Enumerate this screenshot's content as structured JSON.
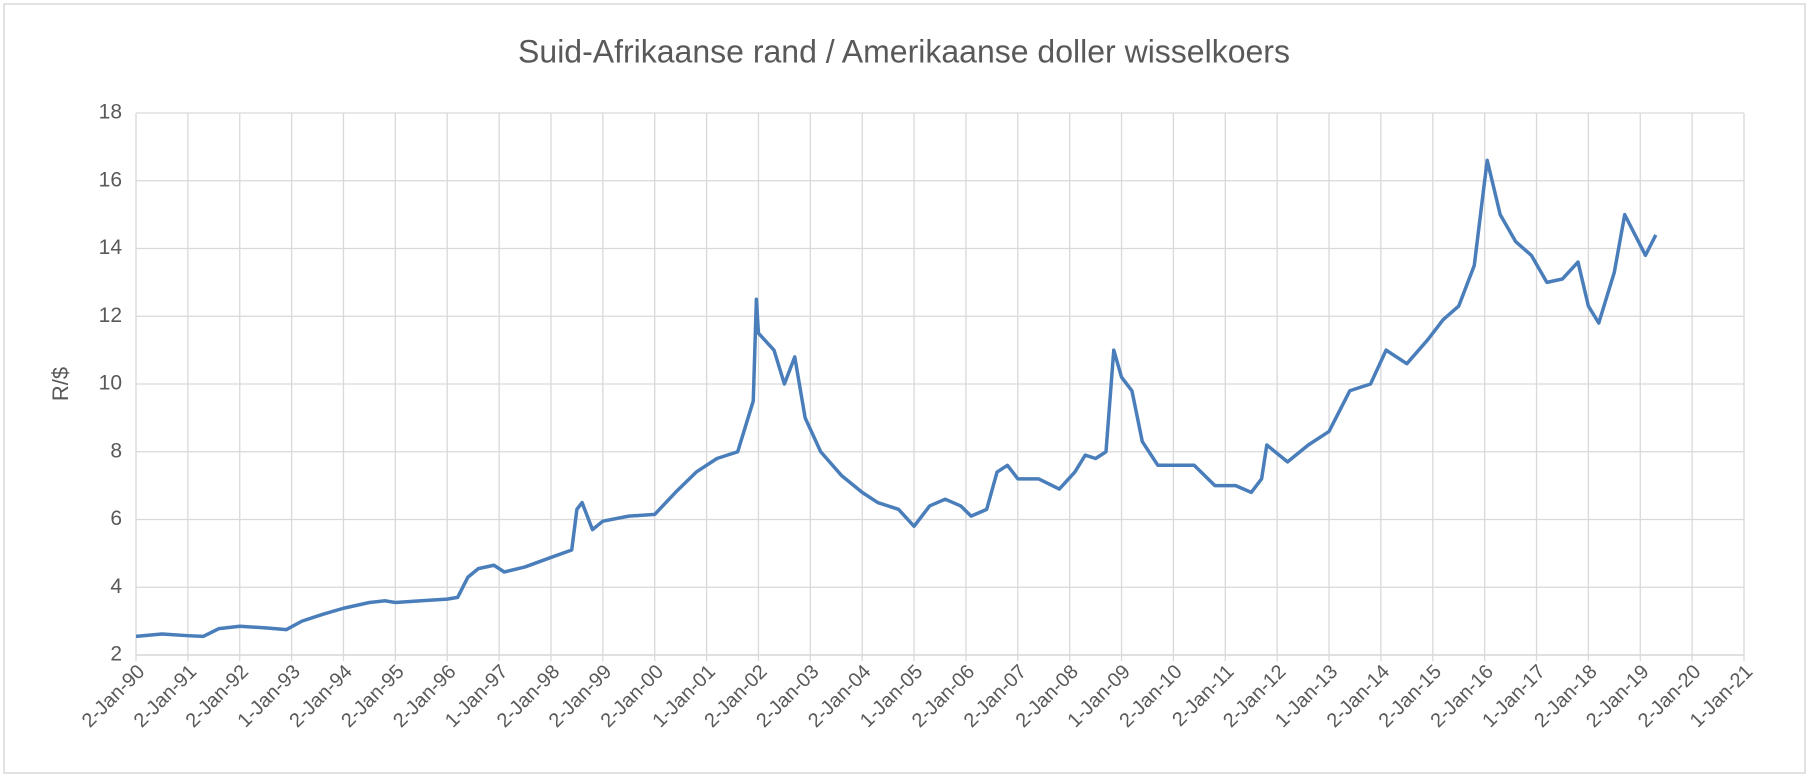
{
  "chart_data": {
    "type": "line",
    "title": "Suid-Afrikaanse rand / Amerikaanse doller wisselkoers",
    "y_label": "R/$",
    "grid": true,
    "xlim": [
      1990,
      2021
    ],
    "xticks": [
      {
        "value": 1990,
        "label": "2-Jan-90"
      },
      {
        "value": 1991,
        "label": "2-Jan-91"
      },
      {
        "value": 1992,
        "label": "2-Jan-92"
      },
      {
        "value": 1993,
        "label": "1-Jan-93"
      },
      {
        "value": 1994,
        "label": "2-Jan-94"
      },
      {
        "value": 1995,
        "label": "2-Jan-95"
      },
      {
        "value": 1996,
        "label": "2-Jan-96"
      },
      {
        "value": 1997,
        "label": "1-Jan-97"
      },
      {
        "value": 1998,
        "label": "2-Jan-98"
      },
      {
        "value": 1999,
        "label": "2-Jan-99"
      },
      {
        "value": 2000,
        "label": "2-Jan-00"
      },
      {
        "value": 2001,
        "label": "1-Jan-01"
      },
      {
        "value": 2002,
        "label": "2-Jan-02"
      },
      {
        "value": 2003,
        "label": "2-Jan-03"
      },
      {
        "value": 2004,
        "label": "2-Jan-04"
      },
      {
        "value": 2005,
        "label": "1-Jan-05"
      },
      {
        "value": 2006,
        "label": "2-Jan-06"
      },
      {
        "value": 2007,
        "label": "2-Jan-07"
      },
      {
        "value": 2008,
        "label": "2-Jan-08"
      },
      {
        "value": 2009,
        "label": "1-Jan-09"
      },
      {
        "value": 2010,
        "label": "2-Jan-10"
      },
      {
        "value": 2011,
        "label": "2-Jan-11"
      },
      {
        "value": 2012,
        "label": "2-Jan-12"
      },
      {
        "value": 2013,
        "label": "1-Jan-13"
      },
      {
        "value": 2014,
        "label": "2-Jan-14"
      },
      {
        "value": 2015,
        "label": "2-Jan-15"
      },
      {
        "value": 2016,
        "label": "2-Jan-16"
      },
      {
        "value": 2017,
        "label": "1-Jan-17"
      },
      {
        "value": 2018,
        "label": "2-Jan-18"
      },
      {
        "value": 2019,
        "label": "2-Jan-19"
      },
      {
        "value": 2020,
        "label": "2-Jan-20"
      },
      {
        "value": 2021,
        "label": "1-Jan-21"
      }
    ],
    "ylim": [
      2,
      18
    ],
    "yticks": [
      2,
      4,
      6,
      8,
      10,
      12,
      14,
      16,
      18
    ],
    "x": [
      1990.0,
      1990.5,
      1991.0,
      1991.3,
      1991.6,
      1992.0,
      1992.5,
      1992.9,
      1993.2,
      1993.6,
      1994.0,
      1994.5,
      1994.8,
      1995.0,
      1995.5,
      1996.0,
      1996.2,
      1996.4,
      1996.6,
      1996.9,
      1997.1,
      1997.5,
      1998.0,
      1998.4,
      1998.5,
      1998.6,
      1998.8,
      1999.0,
      1999.5,
      2000.0,
      2000.4,
      2000.8,
      2001.2,
      2001.6,
      2001.9,
      2001.96,
      2002.0,
      2002.3,
      2002.5,
      2002.7,
      2002.9,
      2003.2,
      2003.6,
      2004.0,
      2004.3,
      2004.7,
      2005.0,
      2005.3,
      2005.6,
      2005.9,
      2006.1,
      2006.4,
      2006.6,
      2006.8,
      2007.0,
      2007.4,
      2007.8,
      2008.1,
      2008.3,
      2008.5,
      2008.7,
      2008.85,
      2009.0,
      2009.2,
      2009.4,
      2009.7,
      2010.0,
      2010.4,
      2010.8,
      2011.2,
      2011.5,
      2011.7,
      2011.8,
      2012.2,
      2012.6,
      2013.0,
      2013.4,
      2013.8,
      2014.1,
      2014.5,
      2014.9,
      2015.2,
      2015.5,
      2015.8,
      2016.0,
      2016.05,
      2016.3,
      2016.6,
      2016.9,
      2017.2,
      2017.5,
      2017.8,
      2018.0,
      2018.2,
      2018.5,
      2018.7,
      2018.9,
      2019.1,
      2019.3
    ],
    "series": [
      {
        "color": "#4a7ebb",
        "values": [
          2.55,
          2.62,
          2.57,
          2.55,
          2.78,
          2.85,
          2.8,
          2.75,
          3.0,
          3.2,
          3.38,
          3.55,
          3.6,
          3.55,
          3.6,
          3.65,
          3.7,
          4.3,
          4.55,
          4.65,
          4.45,
          4.6,
          4.88,
          5.1,
          6.3,
          6.5,
          5.7,
          5.95,
          6.1,
          6.15,
          6.8,
          7.4,
          7.8,
          8.0,
          9.5,
          12.5,
          11.5,
          11.0,
          10.0,
          10.8,
          9.0,
          8.0,
          7.3,
          6.8,
          6.5,
          6.3,
          5.8,
          6.4,
          6.6,
          6.4,
          6.1,
          6.3,
          7.4,
          7.6,
          7.2,
          7.2,
          6.9,
          7.4,
          7.9,
          7.8,
          8.0,
          11.0,
          10.2,
          9.8,
          8.3,
          7.6,
          7.6,
          7.6,
          7.0,
          7.0,
          6.8,
          7.2,
          8.2,
          7.7,
          8.2,
          8.6,
          9.8,
          10.0,
          11.0,
          10.6,
          11.3,
          11.9,
          12.3,
          13.5,
          16.0,
          16.6,
          15.0,
          14.2,
          13.8,
          13.0,
          13.1,
          13.6,
          12.3,
          11.8,
          13.3,
          15.0,
          14.4,
          13.8,
          14.4
        ]
      }
    ]
  }
}
